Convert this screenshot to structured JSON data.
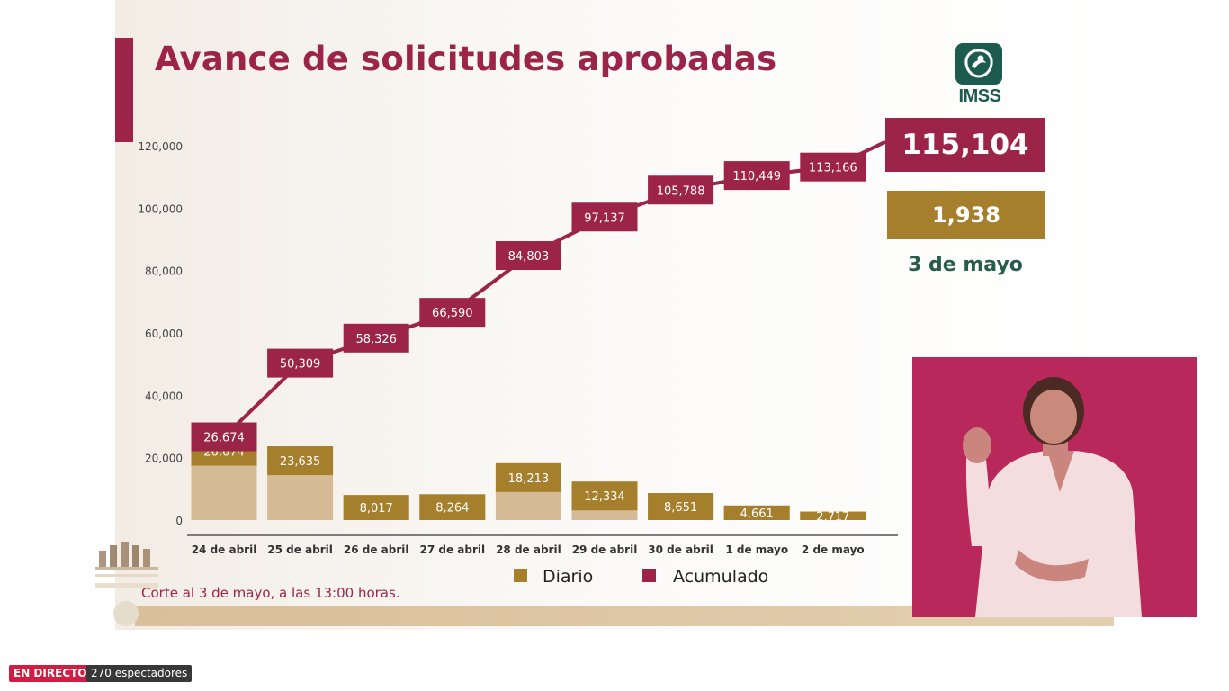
{
  "slide": {
    "title": "Avance de solicitudes aprobadas",
    "logo_text": "IMSS",
    "total_value": "115,104",
    "daily_value": "1,938",
    "date": "3 de mayo",
    "footnote": "Corte al 3 de mayo, a las 13:00 horas."
  },
  "stream": {
    "live_label": "EN DIRECTO",
    "viewers_label": "270 espectadores"
  },
  "colors": {
    "accent_red": "#9d2449",
    "accent_gold": "#a57f2c",
    "daily_bar_top": "#a57f2c",
    "daily_bar_body": "#d5bb95",
    "green": "#285c4d"
  },
  "chart_data": {
    "type": "bar",
    "categories": [
      "24 de abril",
      "25 de abril",
      "26 de abril",
      "27 de abril",
      "28 de abril",
      "29 de abril",
      "30 de abril",
      "1 de mayo",
      "2 de mayo"
    ],
    "ylim": [
      0,
      120000
    ],
    "yticks": [
      0,
      20000,
      40000,
      60000,
      80000,
      100000,
      120000
    ],
    "ytick_labels": [
      "0",
      "20,000",
      "40,000",
      "60,000",
      "80,000",
      "100,000",
      "120,000"
    ],
    "series": [
      {
        "name": "Diario",
        "type": "bar",
        "values": [
          26674,
          23635,
          8017,
          8264,
          18213,
          12334,
          8651,
          4661,
          2717
        ],
        "labels": [
          "26,674",
          "23,635",
          "8,017",
          "8,264",
          "18,213",
          "12,334",
          "8,651",
          "4,661",
          "2,717"
        ]
      },
      {
        "name": "Acumulado",
        "type": "line",
        "values": [
          26674,
          50309,
          58326,
          66590,
          84803,
          97137,
          105788,
          110449,
          113166
        ],
        "labels": [
          "26,674",
          "50,309",
          "58,326",
          "66,590",
          "84,803",
          "97,137",
          "105,788",
          "110,449",
          "113,166"
        ]
      }
    ],
    "legend": [
      "Diario",
      "Acumulado"
    ],
    "legend_position": "bottom"
  }
}
